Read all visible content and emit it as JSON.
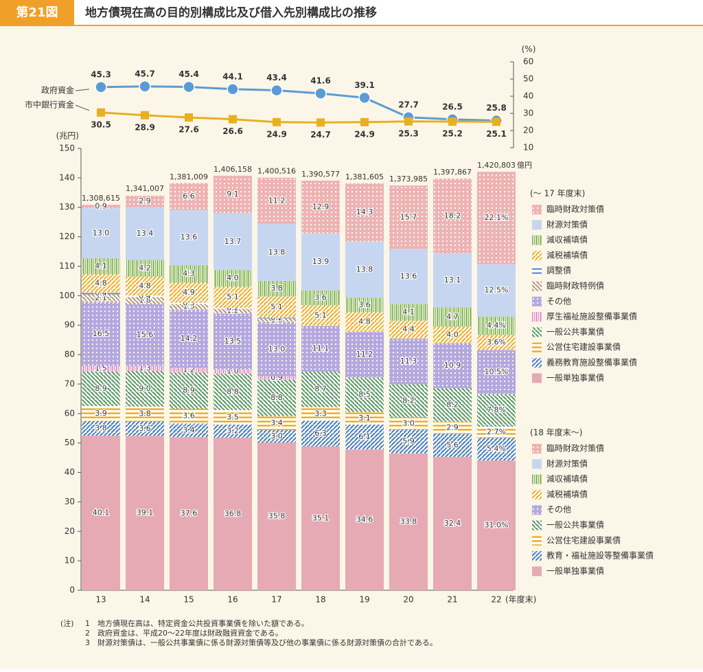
{
  "header": {
    "number": "第21図",
    "title": "地方債現在高の目的別構成比及び借入先別構成比の推移"
  },
  "notes": {
    "label": "(注)",
    "items": [
      {
        "number": "1",
        "text": "地方債現在高は、特定資金公共投資事業債を除いた額である。"
      },
      {
        "number": "2",
        "text": "政府資金は、平成20〜22年度は財政融資資金である。"
      },
      {
        "number": "3",
        "text": "財源対策債は、一般公共事業債に係る財源対策債等及び他の事業債に係る財源対策債の合計である。"
      }
    ]
  },
  "chart_data": [
    {
      "type": "bar",
      "stacked": true,
      "y_label": "(兆円)",
      "x_label": "(年度末)",
      "categories": [
        "13",
        "14",
        "15",
        "16",
        "17",
        "18",
        "19",
        "20",
        "21",
        "22"
      ],
      "ylim": [
        0,
        150
      ],
      "yticks": [
        0,
        10,
        20,
        30,
        40,
        50,
        60,
        70,
        80,
        90,
        100,
        110,
        120,
        130,
        140,
        150
      ],
      "totals": [
        130.8615,
        134.1007,
        138.1009,
        140.6158,
        140.0516,
        139.0577,
        138.1605,
        137.3985,
        139.7867,
        142.0803
      ],
      "total_labels": [
        "1,308,615",
        "1,341,007",
        "1,381,009",
        "1,406,158",
        "1,400,516",
        "1,390,577",
        "1,381,605",
        "1,373,985",
        "1,397,867",
        "1,420,803"
      ],
      "total_unit": "億円",
      "groups": [
        {
          "name": "(～ 17 年度末)",
          "series": [
            {
              "name": "臨時財政対策債",
              "color": "#eeb3b3",
              "pattern": "dots",
              "values": [
                0.9,
                2.9,
                6.6,
                9.1,
                11.2,
                null,
                null,
                null,
                null,
                null
              ],
              "value_labels": [
                "0.9",
                "2.9",
                "6.6",
                "9.1",
                "11.2",
                null,
                null,
                null,
                null,
                null
              ]
            },
            {
              "name": "財源対策債",
              "color": "#c6d6f0",
              "pattern": "solid",
              "values": [
                13.0,
                13.4,
                13.6,
                13.7,
                13.8,
                null,
                null,
                null,
                null,
                null
              ],
              "value_labels": [
                "13.0",
                "13.4",
                "13.6",
                "13.7",
                "13.8",
                null,
                null,
                null,
                null,
                null
              ]
            },
            {
              "name": "減収補填債",
              "color": "#7fb04a",
              "pattern": "vstripes",
              "values": [
                4.1,
                4.2,
                4.3,
                4.0,
                3.8,
                null,
                null,
                null,
                null,
                null
              ],
              "value_labels": [
                "4.1",
                "4.2",
                "4.3",
                "4.0",
                "3.8",
                null,
                null,
                null,
                null,
                null
              ]
            },
            {
              "name": "減税補填債",
              "color": "#f0b030",
              "pattern": "diag",
              "values": [
                4.8,
                4.8,
                4.9,
                5.1,
                5.1,
                null,
                null,
                null,
                null,
                null
              ],
              "value_labels": [
                "4.8",
                "4.8",
                "4.9",
                "5.1",
                "5.1",
                null,
                null,
                null,
                null,
                null
              ]
            },
            {
              "name": "調整債",
              "color": "#5f86c4",
              "pattern": "hstripes",
              "values": [
                0.4,
                0.4,
                0.3,
                0.2,
                0.2,
                null,
                null,
                null,
                null,
                null
              ],
              "value_labels": [
                "0.4",
                "0.4",
                "0.3",
                "0.2",
                "0.2",
                null,
                null,
                null,
                null,
                null
              ]
            },
            {
              "name": "臨時財政特例債",
              "color": "#b89a7c",
              "pattern": "diag2",
              "values": [
                2.1,
                1.8,
                1.5,
                1.2,
                1.0,
                null,
                null,
                null,
                null,
                null
              ],
              "value_labels": [
                "2.1",
                "1.8",
                "1.5",
                "1.2",
                "1.0",
                null,
                null,
                null,
                null,
                null
              ]
            },
            {
              "name": "その他",
              "color": "#b4a8de",
              "pattern": "dots",
              "values": [
                16.5,
                15.6,
                14.2,
                13.5,
                13.0,
                null,
                null,
                null,
                null,
                null
              ],
              "value_labels": [
                "16.5",
                "15.6",
                "14.2",
                "13.5",
                "13.0",
                null,
                null,
                null,
                null,
                null
              ]
            },
            {
              "name": "厚生福祉施設整備事業債",
              "color": "#e08cc0",
              "pattern": "vstripes",
              "values": [
                1.5,
                1.3,
                1.2,
                1.0,
                0.9,
                null,
                null,
                null,
                null,
                null
              ],
              "value_labels": [
                "1.5",
                "1.3",
                "1.2",
                "1.0",
                "0.9",
                null,
                null,
                null,
                null,
                null
              ]
            },
            {
              "name": "一般公共事業債",
              "color": "#5f9a68",
              "pattern": "diag2",
              "values": [
                8.9,
                9.0,
                8.9,
                8.8,
                8.8,
                null,
                null,
                null,
                null,
                null
              ],
              "value_labels": [
                "8.9",
                "9.0",
                "8.9",
                "8.8",
                "8.8",
                null,
                null,
                null,
                null,
                null
              ]
            },
            {
              "name": "公営住宅建設事業債",
              "color": "#eea400",
              "pattern": "hstripes",
              "values": [
                3.9,
                3.8,
                3.6,
                3.5,
                3.4,
                null,
                null,
                null,
                null,
                null
              ],
              "value_labels": [
                "3.9",
                "3.8",
                "3.6",
                "3.5",
                "3.4",
                null,
                null,
                null,
                null,
                null
              ]
            },
            {
              "name": "義務教育施設整備事業債",
              "color": "#4d80bc",
              "pattern": "diag",
              "values": [
                3.8,
                3.6,
                3.4,
                3.2,
                3.0,
                null,
                null,
                null,
                null,
                null
              ],
              "value_labels": [
                "3.8",
                "3.6",
                "3.4",
                "3.2",
                "3.0",
                null,
                null,
                null,
                null,
                null
              ]
            },
            {
              "name": "一般単独事業債",
              "color": "#e6aab4",
              "pattern": "solid",
              "values": [
                40.1,
                39.1,
                37.6,
                36.8,
                35.8,
                null,
                null,
                null,
                null,
                null
              ],
              "value_labels": [
                "40.1",
                "39.1",
                "37.6",
                "36.8",
                "35.8",
                null,
                null,
                null,
                null,
                null
              ]
            }
          ]
        },
        {
          "name": "(18 年度末～)",
          "series": [
            {
              "name": "臨時財政対策債",
              "color": "#eeb3b3",
              "pattern": "dots",
              "values": [
                null,
                null,
                null,
                null,
                null,
                12.9,
                14.3,
                15.7,
                18.2,
                22.1
              ],
              "value_labels": [
                null,
                null,
                null,
                null,
                null,
                "12.9",
                "14.3",
                "15.7",
                "18.2",
                "22.1%"
              ]
            },
            {
              "name": "財源対策債",
              "color": "#c6d6f0",
              "pattern": "solid",
              "values": [
                null,
                null,
                null,
                null,
                null,
                13.9,
                13.8,
                13.6,
                13.1,
                12.5
              ],
              "value_labels": [
                null,
                null,
                null,
                null,
                null,
                "13.9",
                "13.8",
                "13.6",
                "13.1",
                "12.5%"
              ]
            },
            {
              "name": "減収補填債",
              "color": "#7fb04a",
              "pattern": "vstripes",
              "values": [
                null,
                null,
                null,
                null,
                null,
                3.6,
                3.6,
                4.1,
                4.7,
                4.4
              ],
              "value_labels": [
                null,
                null,
                null,
                null,
                null,
                "3.6",
                "3.6",
                "4.1",
                "4.7",
                "4.4%"
              ]
            },
            {
              "name": "減税補填債",
              "color": "#f0b030",
              "pattern": "diag",
              "values": [
                null,
                null,
                null,
                null,
                null,
                5.1,
                4.8,
                4.4,
                4.0,
                3.6
              ],
              "value_labels": [
                null,
                null,
                null,
                null,
                null,
                "5.1",
                "4.8",
                "4.4",
                "4.0",
                "3.6%"
              ]
            },
            {
              "name": "その他",
              "color": "#b4a8de",
              "pattern": "dots",
              "values": [
                null,
                null,
                null,
                null,
                null,
                11.1,
                11.2,
                11.3,
                10.9,
                10.5
              ],
              "value_labels": [
                null,
                null,
                null,
                null,
                null,
                "11.1",
                "11.2",
                "11.3",
                "10.9",
                "10.5%"
              ]
            },
            {
              "name": "一般公共事業債",
              "color": "#5f9a68",
              "pattern": "diag2",
              "values": [
                null,
                null,
                null,
                null,
                null,
                8.7,
                8.5,
                8.2,
                8.2,
                7.8
              ],
              "value_labels": [
                null,
                null,
                null,
                null,
                null,
                "8.7",
                "8.5",
                "8.2",
                "8.2",
                "7.8%"
              ]
            },
            {
              "name": "公営住宅建設事業債",
              "color": "#eea400",
              "pattern": "hstripes",
              "values": [
                null,
                null,
                null,
                null,
                null,
                3.3,
                3.1,
                3.0,
                2.9,
                2.7
              ],
              "value_labels": [
                null,
                null,
                null,
                null,
                null,
                "3.3",
                "3.1",
                "3.0",
                "2.9",
                "2.7%"
              ]
            },
            {
              "name": "教育・福祉施設等整備事業債",
              "color": "#4d80bc",
              "pattern": "diag",
              "values": [
                null,
                null,
                null,
                null,
                null,
                6.3,
                6.1,
                5.9,
                5.6,
                5.4
              ],
              "value_labels": [
                null,
                null,
                null,
                null,
                null,
                "6.3",
                "6.1",
                "5.9",
                "5.6",
                "5.4%"
              ]
            },
            {
              "name": "一般単独事業債",
              "color": "#e6aab4",
              "pattern": "solid",
              "values": [
                null,
                null,
                null,
                null,
                null,
                35.1,
                34.6,
                33.8,
                32.4,
                31.0
              ],
              "value_labels": [
                null,
                null,
                null,
                null,
                null,
                "35.1",
                "34.6",
                "33.8",
                "32.4",
                "31.0%"
              ]
            }
          ]
        }
      ]
    },
    {
      "type": "line",
      "y2_label": "(%)",
      "y2lim": [
        10,
        60
      ],
      "y2ticks": [
        10,
        20,
        30,
        40,
        50,
        60
      ],
      "series": [
        {
          "name": "政府資金",
          "color": "#5b9bd5",
          "marker": "circle",
          "axis": "y2",
          "values": [
            45.3,
            45.7,
            45.4,
            44.1,
            43.4,
            41.6,
            39.1,
            27.7,
            26.5,
            25.8
          ]
        },
        {
          "name": "市中銀行資金",
          "color": "#e8b020",
          "marker": "square",
          "axis": "y2",
          "values": [
            30.5,
            28.9,
            27.6,
            26.6,
            24.9,
            24.7,
            24.9,
            25.3,
            25.2,
            25.1
          ]
        }
      ]
    }
  ]
}
